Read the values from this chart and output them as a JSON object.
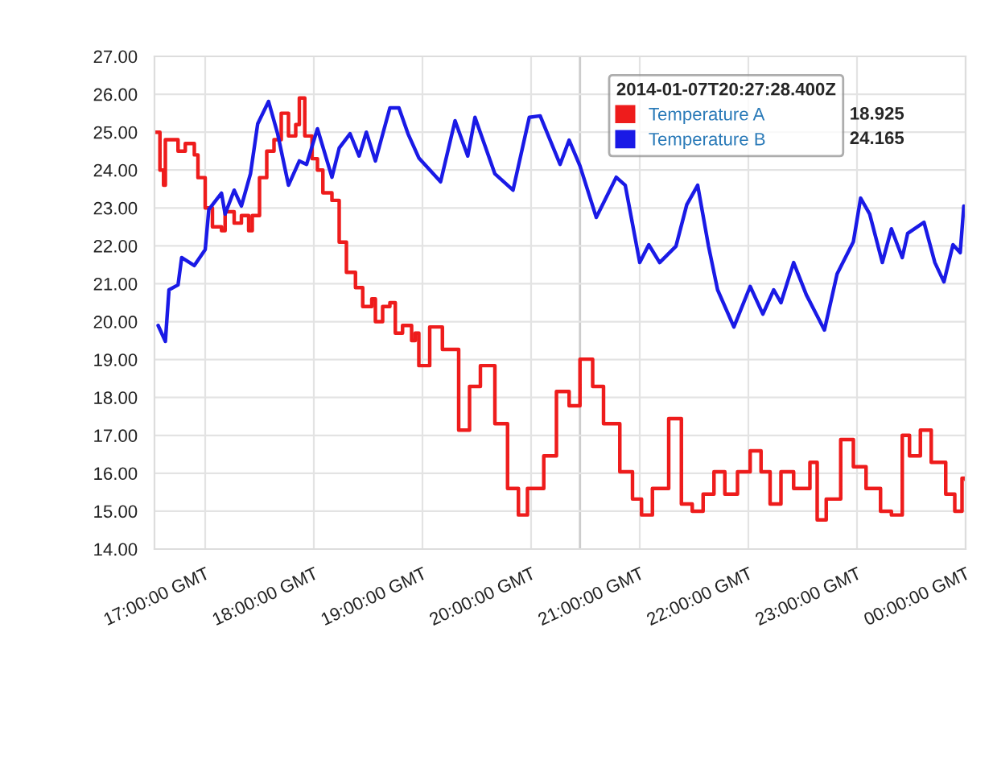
{
  "chart_data": {
    "type": "line",
    "xlim": [
      "2014-01-07T16:32",
      "2014-01-08T00:00"
    ],
    "xticks": [
      {
        "value": "2014-01-07T17:00",
        "label": "17:00:00 GMT"
      },
      {
        "value": "2014-01-07T18:00",
        "label": "18:00:00 GMT"
      },
      {
        "value": "2014-01-07T19:00",
        "label": "19:00:00 GMT"
      },
      {
        "value": "2014-01-07T20:00",
        "label": "20:00:00 GMT"
      },
      {
        "value": "2014-01-07T21:00",
        "label": "21:00:00 GMT"
      },
      {
        "value": "2014-01-07T22:00",
        "label": "22:00:00 GMT"
      },
      {
        "value": "2014-01-07T23:00",
        "label": "23:00:00 GMT"
      },
      {
        "value": "2014-01-08T00:00",
        "label": "00:00:00 GMT"
      }
    ],
    "ylim": [
      14,
      27
    ],
    "yticks": [
      {
        "value": 14,
        "label": "14.00"
      },
      {
        "value": 15,
        "label": "15.00"
      },
      {
        "value": 16,
        "label": "16.00"
      },
      {
        "value": 17,
        "label": "17.00"
      },
      {
        "value": 18,
        "label": "18.00"
      },
      {
        "value": 19,
        "label": "19.00"
      },
      {
        "value": 20,
        "label": "20.00"
      },
      {
        "value": 21,
        "label": "21.00"
      },
      {
        "value": 22,
        "label": "22.00"
      },
      {
        "value": 23,
        "label": "23.00"
      },
      {
        "value": 24,
        "label": "24.00"
      },
      {
        "value": 25,
        "label": "25.00"
      },
      {
        "value": 26,
        "label": "26.00"
      },
      {
        "value": 27,
        "label": "27.00"
      }
    ],
    "grid": true,
    "legend": "top right",
    "legend_title": "2014-01-07T20:27:28.400Z",
    "annotations": [
      "18.925",
      "24.165"
    ],
    "ref_lines": [
      {
        "axis": "x",
        "value": "2014-01-07T20:27",
        "label": null,
        "color": "#cccccc"
      }
    ],
    "series": [
      {
        "name": "Temperature A",
        "type": "step",
        "color": "#ee1c1c",
        "x": [
          "2014-01-07T16:32",
          "2014-01-07T16:35",
          "2014-01-07T16:37",
          "2014-01-07T16:38",
          "2014-01-07T16:41",
          "2014-01-07T16:45",
          "2014-01-07T16:49",
          "2014-01-07T16:54",
          "2014-01-07T16:56",
          "2014-01-07T17:00",
          "2014-01-07T17:04",
          "2014-01-07T17:09",
          "2014-01-07T17:11",
          "2014-01-07T17:16",
          "2014-01-07T17:20",
          "2014-01-07T17:24",
          "2014-01-07T17:26",
          "2014-01-07T17:30",
          "2014-01-07T17:34",
          "2014-01-07T17:38",
          "2014-01-07T17:42",
          "2014-01-07T17:46",
          "2014-01-07T17:50",
          "2014-01-07T17:52",
          "2014-01-07T17:55",
          "2014-01-07T17:59",
          "2014-01-07T18:02",
          "2014-01-07T18:05",
          "2014-01-07T18:10",
          "2014-01-07T18:14",
          "2014-01-07T18:18",
          "2014-01-07T18:23",
          "2014-01-07T18:27",
          "2014-01-07T18:32",
          "2014-01-07T18:34",
          "2014-01-07T18:38",
          "2014-01-07T18:42",
          "2014-01-07T18:45",
          "2014-01-07T18:49",
          "2014-01-07T18:54",
          "2014-01-07T18:56",
          "2014-01-07T18:58",
          "2014-01-07T19:04",
          "2014-01-07T19:11",
          "2014-01-07T19:20",
          "2014-01-07T19:26",
          "2014-01-07T19:32",
          "2014-01-07T19:40",
          "2014-01-07T19:47",
          "2014-01-07T19:53",
          "2014-01-07T19:58",
          "2014-01-07T20:07",
          "2014-01-07T20:14",
          "2014-01-07T20:21",
          "2014-01-07T20:27",
          "2014-01-07T20:34",
          "2014-01-07T20:40",
          "2014-01-07T20:49",
          "2014-01-07T20:56",
          "2014-01-07T21:01",
          "2014-01-07T21:07",
          "2014-01-07T21:16",
          "2014-01-07T21:23",
          "2014-01-07T21:29",
          "2014-01-07T21:35",
          "2014-01-07T21:41",
          "2014-01-07T21:47",
          "2014-01-07T21:54",
          "2014-01-07T22:01",
          "2014-01-07T22:07",
          "2014-01-07T22:12",
          "2014-01-07T22:18",
          "2014-01-07T22:25",
          "2014-01-07T22:34",
          "2014-01-07T22:38",
          "2014-01-07T22:43",
          "2014-01-07T22:51",
          "2014-01-07T22:58",
          "2014-01-07T23:05",
          "2014-01-07T23:13",
          "2014-01-07T23:19",
          "2014-01-07T23:25",
          "2014-01-07T23:29",
          "2014-01-07T23:35",
          "2014-01-07T23:41",
          "2014-01-07T23:49",
          "2014-01-07T23:54",
          "2014-01-07T23:58",
          "2014-01-08T00:00"
        ],
        "values": [
          25.0,
          24.0,
          23.6,
          24.8,
          24.8,
          24.5,
          24.7,
          24.4,
          23.8,
          23.0,
          22.5,
          22.4,
          22.9,
          22.6,
          22.8,
          22.4,
          22.8,
          23.8,
          24.5,
          24.8,
          25.5,
          24.9,
          25.2,
          25.9,
          24.9,
          24.3,
          24.0,
          23.4,
          23.2,
          22.1,
          21.3,
          20.9,
          20.4,
          20.6,
          20.0,
          20.4,
          20.5,
          19.7,
          19.9,
          19.5,
          19.7,
          18.84,
          19.86,
          19.27,
          17.14,
          18.29,
          18.84,
          17.31,
          15.6,
          14.9,
          15.6,
          16.46,
          18.16,
          17.78,
          19.01,
          18.29,
          17.31,
          16.04,
          15.32,
          14.9,
          15.6,
          17.44,
          15.19,
          15.0,
          15.45,
          16.04,
          15.45,
          16.04,
          16.59,
          16.04,
          15.19,
          16.04,
          15.6,
          16.29,
          14.77,
          15.32,
          16.89,
          16.17,
          15.6,
          15.0,
          14.9,
          17.0,
          16.46,
          17.14,
          16.29,
          15.45,
          15.0,
          15.87,
          15.83
        ]
      },
      {
        "name": "Temperature B",
        "color": "#1a1ae6",
        "x": [
          "2014-01-07T16:34",
          "2014-01-07T16:38",
          "2014-01-07T16:40",
          "2014-01-07T16:45",
          "2014-01-07T16:47",
          "2014-01-07T16:54",
          "2014-01-07T17:00",
          "2014-01-07T17:02",
          "2014-01-07T17:09",
          "2014-01-07T17:11",
          "2014-01-07T17:16",
          "2014-01-07T17:20",
          "2014-01-07T17:25",
          "2014-01-07T17:29",
          "2014-01-07T17:35",
          "2014-01-07T17:40",
          "2014-01-07T17:46",
          "2014-01-07T17:52",
          "2014-01-07T17:56",
          "2014-01-07T18:02",
          "2014-01-07T18:10",
          "2014-01-07T18:14",
          "2014-01-07T18:20",
          "2014-01-07T18:25",
          "2014-01-07T18:29",
          "2014-01-07T18:34",
          "2014-01-07T18:42",
          "2014-01-07T18:47",
          "2014-01-07T18:52",
          "2014-01-07T18:58",
          "2014-01-07T19:10",
          "2014-01-07T19:18",
          "2014-01-07T19:25",
          "2014-01-07T19:29",
          "2014-01-07T19:40",
          "2014-01-07T19:50",
          "2014-01-07T19:59",
          "2014-01-07T20:05",
          "2014-01-07T20:16",
          "2014-01-07T20:21",
          "2014-01-07T20:27",
          "2014-01-07T20:36",
          "2014-01-07T20:47",
          "2014-01-07T20:52",
          "2014-01-07T21:00",
          "2014-01-07T21:05",
          "2014-01-07T21:11",
          "2014-01-07T21:20",
          "2014-01-07T21:26",
          "2014-01-07T21:32",
          "2014-01-07T21:38",
          "2014-01-07T21:43",
          "2014-01-07T21:52",
          "2014-01-07T22:01",
          "2014-01-07T22:08",
          "2014-01-07T22:14",
          "2014-01-07T22:18",
          "2014-01-07T22:25",
          "2014-01-07T22:32",
          "2014-01-07T22:42",
          "2014-01-07T22:49",
          "2014-01-07T22:58",
          "2014-01-07T23:02",
          "2014-01-07T23:07",
          "2014-01-07T23:14",
          "2014-01-07T23:19",
          "2014-01-07T23:25",
          "2014-01-07T23:28",
          "2014-01-07T23:37",
          "2014-01-07T23:43",
          "2014-01-07T23:48",
          "2014-01-07T23:53",
          "2014-01-07T23:57",
          "2014-01-07T23:59"
        ],
        "values": [
          19.9,
          19.48,
          20.84,
          20.97,
          21.69,
          21.48,
          21.9,
          22.96,
          23.39,
          22.84,
          23.47,
          23.05,
          23.9,
          25.22,
          25.81,
          24.96,
          23.6,
          24.24,
          24.15,
          25.09,
          23.81,
          24.58,
          24.96,
          24.37,
          25.0,
          24.24,
          25.64,
          25.64,
          24.96,
          24.32,
          23.69,
          25.3,
          24.37,
          25.39,
          23.9,
          23.47,
          25.39,
          25.43,
          24.15,
          24.79,
          24.11,
          22.75,
          23.81,
          23.6,
          21.56,
          22.03,
          21.56,
          21.99,
          23.09,
          23.6,
          21.99,
          20.84,
          19.86,
          20.93,
          20.2,
          20.84,
          20.5,
          21.56,
          20.71,
          19.78,
          21.26,
          22.11,
          23.26,
          22.84,
          21.56,
          22.45,
          21.69,
          22.33,
          22.62,
          21.56,
          21.05,
          22.03,
          21.82,
          23.05
        ]
      }
    ]
  }
}
